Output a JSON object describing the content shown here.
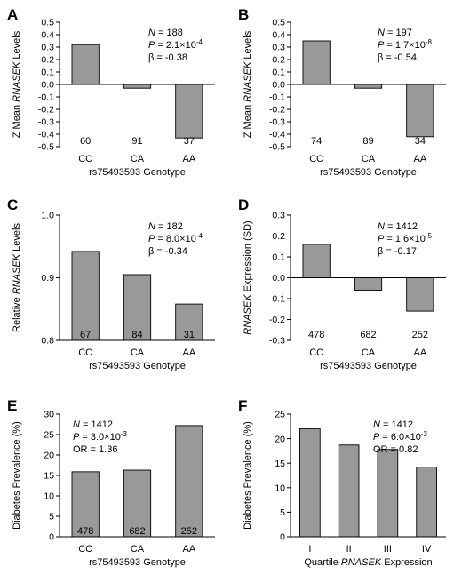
{
  "chart_data": [
    {
      "type": "bar",
      "panel": "A",
      "categories": [
        "CC",
        "CA",
        "AA"
      ],
      "values": [
        0.32,
        -0.03,
        -0.43
      ],
      "counts": [
        "60",
        "91",
        "37"
      ],
      "ylim": [
        -0.5,
        0.5
      ],
      "yticks": [
        "0.5",
        "0.4",
        "0.3",
        "0.2",
        "0.1",
        "0.0",
        "-0.1",
        "-0.2",
        "-0.3",
        "-0.4",
        "-0.5"
      ],
      "ylabel": [
        "Z Mean ",
        "RNASEK",
        " Levels"
      ],
      "xlabel": "rs75493593 Genotype",
      "stats": [
        {
          "pre": "N",
          "post": " = 188"
        },
        {
          "pre": "P",
          "post": " = 2.1×10",
          "sup": "-4"
        },
        {
          "pre": "β = -0.38",
          "post": ""
        }
      ]
    },
    {
      "type": "bar",
      "panel": "B",
      "categories": [
        "CC",
        "CA",
        "AA"
      ],
      "values": [
        0.35,
        -0.03,
        -0.42
      ],
      "counts": [
        "74",
        "89",
        "34"
      ],
      "ylim": [
        -0.5,
        0.5
      ],
      "yticks": [
        "0.5",
        "0.4",
        "0.3",
        "0.2",
        "0.1",
        "0.0",
        "-0.1",
        "-0.2",
        "-0.3",
        "-0.4",
        "-0.5"
      ],
      "ylabel": [
        "Z Mean ",
        "RNASEK",
        " Levels"
      ],
      "xlabel": "rs75493593 Genotype",
      "stats": [
        {
          "pre": "N",
          "post": " = 197"
        },
        {
          "pre": "P",
          "post": " = 1.7×10",
          "sup": "-8"
        },
        {
          "pre": "β = -0.54",
          "post": ""
        }
      ]
    },
    {
      "type": "bar",
      "panel": "C",
      "categories": [
        "CC",
        "CA",
        "AA"
      ],
      "values": [
        0.942,
        0.905,
        0.858
      ],
      "counts": [
        "67",
        "84",
        "31"
      ],
      "ylim": [
        0.8,
        1.0
      ],
      "yticks": [
        "1.0",
        "0.9",
        "0.8"
      ],
      "ylabel": [
        "Relative ",
        "RNASEK",
        " Levels"
      ],
      "xlabel": "rs75493593 Genotype",
      "stats": [
        {
          "pre": "N",
          "post": " = 182"
        },
        {
          "pre": "P",
          "post": " = 8.0×10",
          "sup": "-4"
        },
        {
          "pre": "β = -0.34",
          "post": ""
        }
      ]
    },
    {
      "type": "bar",
      "panel": "D",
      "categories": [
        "CC",
        "CA",
        "AA"
      ],
      "values": [
        0.16,
        -0.06,
        -0.16
      ],
      "counts": [
        "478",
        "682",
        "252"
      ],
      "ylim": [
        -0.3,
        0.3
      ],
      "yticks": [
        "0.3",
        "0.2",
        "0.1",
        "0.0",
        "-0.1",
        "-0.2",
        "-0.3"
      ],
      "ylabel": [
        "",
        "RNASEK",
        " Expression (SD)"
      ],
      "xlabel": "rs75493593 Genotype",
      "stats": [
        {
          "pre": "N",
          "post": " = 1412"
        },
        {
          "pre": "P",
          "post": " = 1.6×10",
          "sup": "-5"
        },
        {
          "pre": "β = -0.17",
          "post": ""
        }
      ]
    },
    {
      "type": "bar",
      "panel": "E",
      "categories": [
        "CC",
        "CA",
        "AA"
      ],
      "values": [
        15.9,
        16.3,
        27.2
      ],
      "counts": [
        "478",
        "682",
        "252"
      ],
      "ylim": [
        0,
        30
      ],
      "yticks": [
        "30",
        "25",
        "20",
        "15",
        "10",
        "5",
        "0"
      ],
      "ylabel": [
        "Diabetes Prevalence (%)",
        "",
        ""
      ],
      "xlabel": "rs75493593 Genotype",
      "stats": [
        {
          "pre": "N",
          "post": " = 1412"
        },
        {
          "pre": "P",
          "post": " = 3.0×10",
          "sup": "-3"
        },
        {
          "pre": "OR = 1.36",
          "post": ""
        }
      ]
    },
    {
      "type": "bar",
      "panel": "F",
      "categories": [
        "I",
        "II",
        "III",
        "IV"
      ],
      "values": [
        22.0,
        18.7,
        17.8,
        14.2
      ],
      "counts": [],
      "ylim": [
        0,
        25
      ],
      "yticks": [
        "25",
        "20",
        "15",
        "10",
        "5",
        "0"
      ],
      "ylabel": [
        "Diabetes Prevalence (%)",
        "",
        ""
      ],
      "xlabel": "Quartile RNASEK Expression",
      "xlabel_parts": [
        "Quartile ",
        "RNASEK",
        " Expression"
      ],
      "stats": [
        {
          "pre": "N",
          "post": " = 1412"
        },
        {
          "pre": "P",
          "post": " = 6.0×10",
          "sup": "-3"
        },
        {
          "pre": "OR = 0.82",
          "post": ""
        }
      ]
    }
  ]
}
